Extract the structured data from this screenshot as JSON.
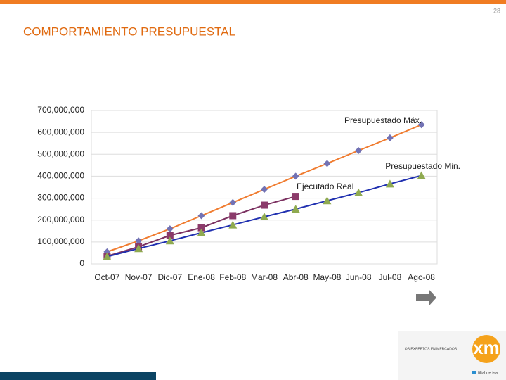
{
  "slide": {
    "page_number": "28",
    "title": "COMPORTAMIENTO PRESUPUESTAL",
    "logo": {
      "tagline": "LOS EXPERTOS EN MERCADOS",
      "mark": "xm",
      "subtitle": "filial de isa"
    }
  },
  "chart_data": {
    "type": "line",
    "categories": [
      "Oct-07",
      "Nov-07",
      "Dic-07",
      "Ene-08",
      "Feb-08",
      "Mar-08",
      "Abr-08",
      "May-08",
      "Jun-08",
      "Jul-08",
      "Ago-08"
    ],
    "series": [
      {
        "name": "Presupuestado Máx.",
        "color": "#f07c30",
        "marker_color": "#7272b4",
        "marker": "diamond",
        "values": [
          55000000,
          105000000,
          160000000,
          220000000,
          280000000,
          340000000,
          400000000,
          458000000,
          517000000,
          575000000,
          635000000
        ]
      },
      {
        "name": "Ejecutado Real",
        "color": "#7b3060",
        "marker_color": "#8b3a6a",
        "marker": "square",
        "values": [
          35000000,
          78000000,
          130000000,
          165000000,
          220000000,
          268000000,
          308000000,
          null,
          null,
          null,
          null
        ]
      },
      {
        "name": "Presupuestado Min.",
        "color": "#2030b0",
        "marker_color": "#8faa50",
        "marker": "triangle",
        "values": [
          33000000,
          70000000,
          105000000,
          142000000,
          178000000,
          215000000,
          250000000,
          288000000,
          325000000,
          365000000,
          403000000
        ]
      }
    ],
    "ylim": [
      0,
      700000000
    ],
    "yticks": [
      0,
      {
        "value": 100000000,
        "label": "100,000,000"
      },
      {
        "value": 200000000,
        "label": "200,000,000"
      },
      {
        "value": 300000000,
        "label": "300,000,000"
      },
      {
        "value": 400000000,
        "label": "400,000,000"
      },
      {
        "value": 500000000,
        "label": "500,000,000"
      },
      {
        "value": 600000000,
        "label": "600,000,000"
      },
      {
        "value": 700000000,
        "label": "700,000,000"
      }
    ],
    "grid": true
  }
}
